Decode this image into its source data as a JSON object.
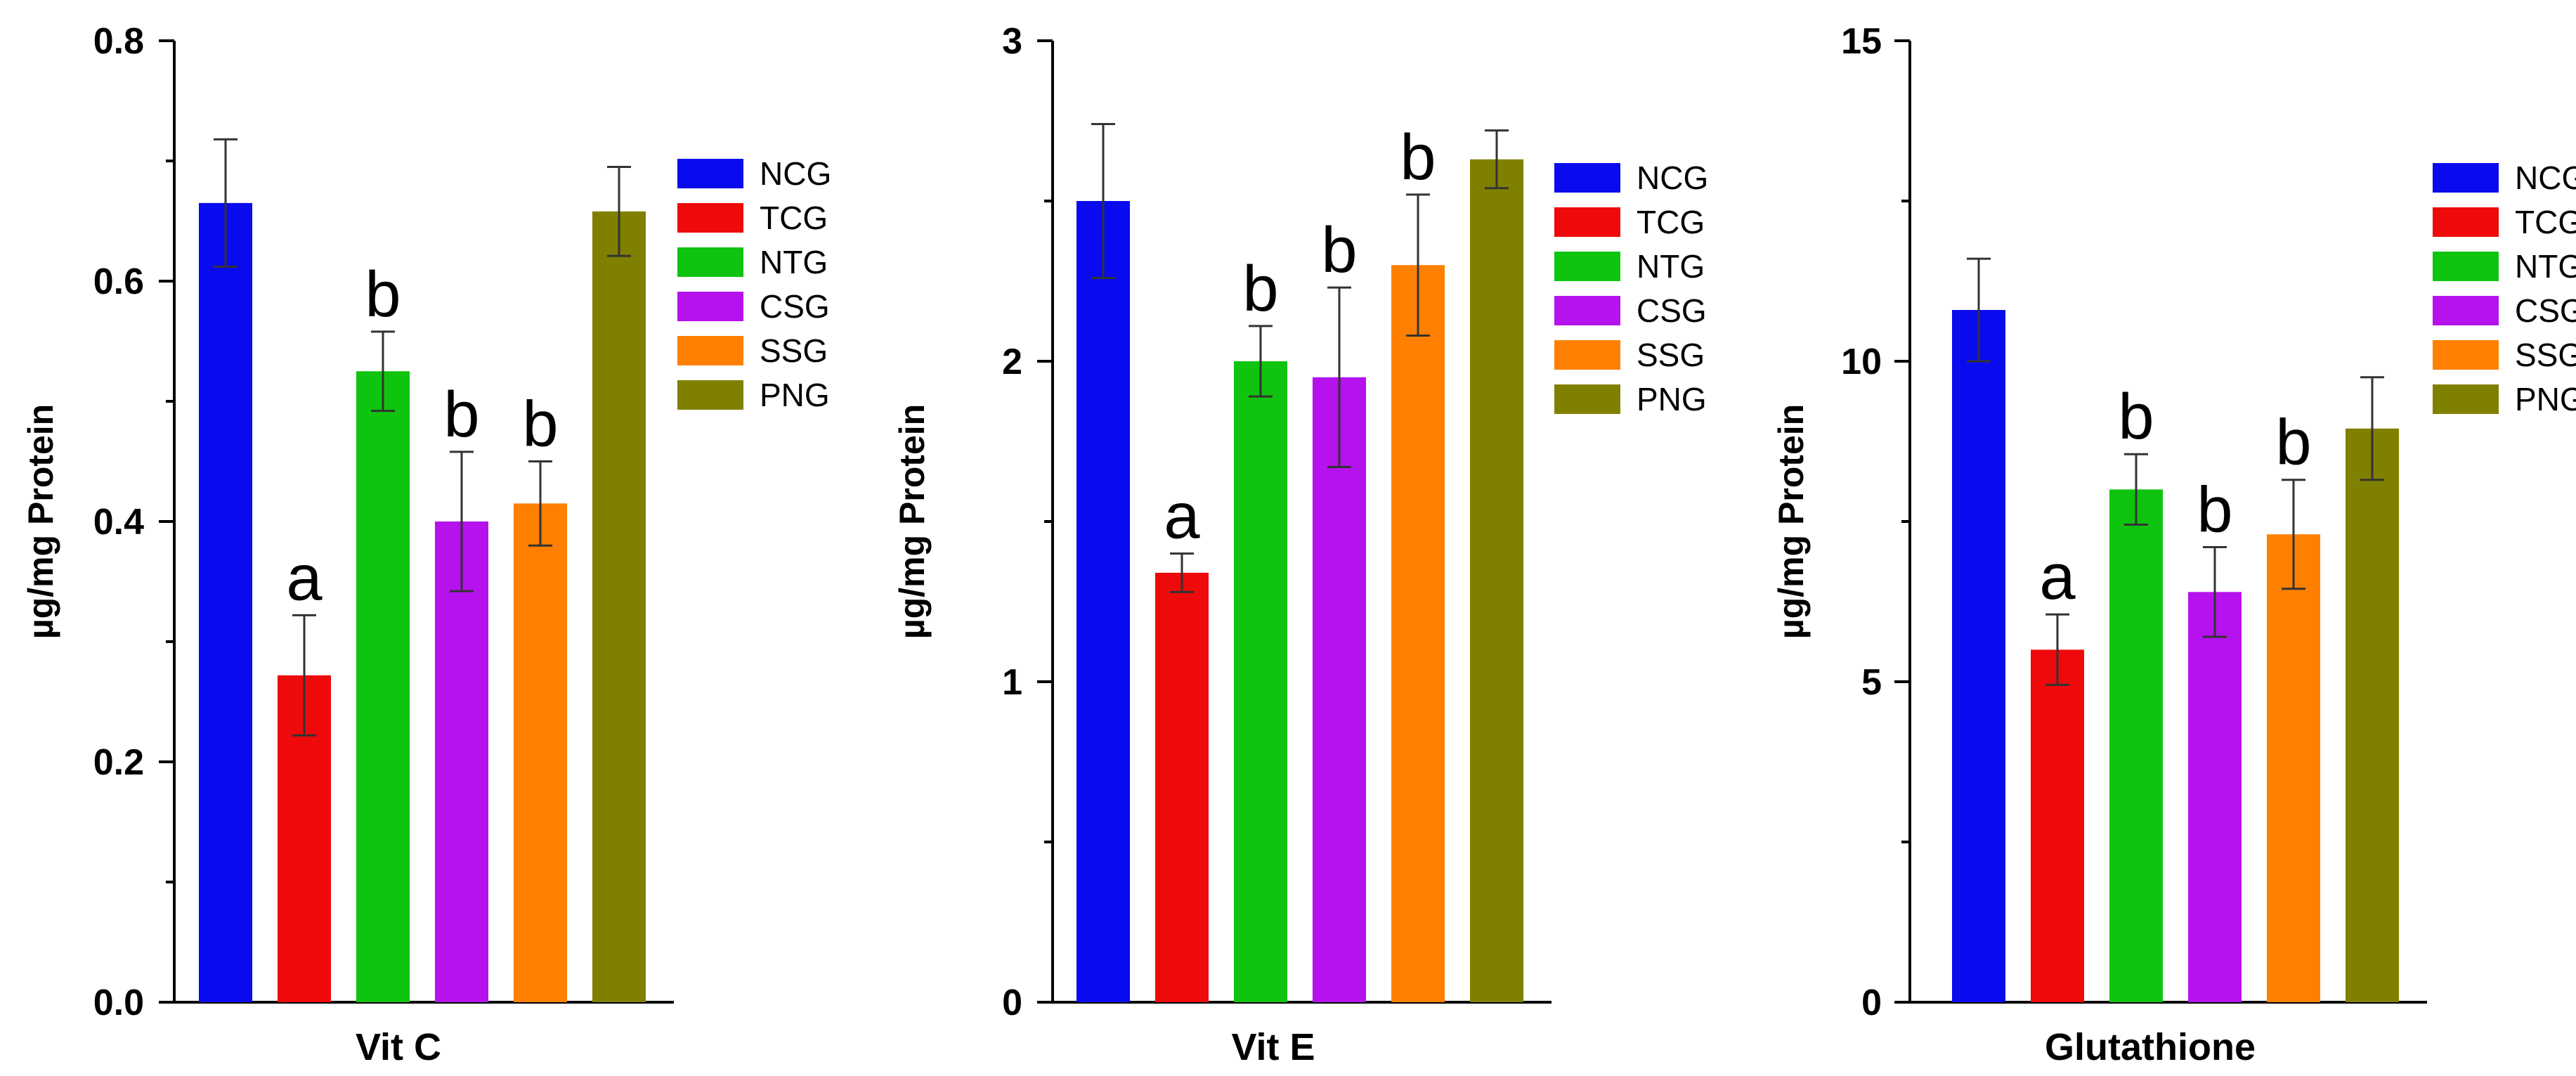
{
  "chart_data": [
    {
      "type": "bar",
      "title": "",
      "xlabel": "Vit C",
      "ylabel": "µg/mg Protein",
      "ylim": [
        0,
        0.8
      ],
      "yticks": [
        0.0,
        0.2,
        0.4,
        0.6,
        0.8
      ],
      "ytick_labels": [
        "0.0",
        "0.2",
        "0.4",
        "0.6",
        "0.8"
      ],
      "categories": [
        "NCG",
        "TCG",
        "NTG",
        "CSG",
        "SSG",
        "PNG"
      ],
      "values": [
        0.665,
        0.272,
        0.525,
        0.4,
        0.415,
        0.658
      ],
      "errors": [
        0.053,
        0.05,
        0.033,
        0.058,
        0.035,
        0.037
      ],
      "annotations": [
        "",
        "a",
        "b",
        "b",
        "b",
        ""
      ],
      "legend_location": "top-right"
    },
    {
      "type": "bar",
      "title": "",
      "xlabel": "Vit E",
      "ylabel": "µg/mg Protein",
      "ylim": [
        0,
        3
      ],
      "yticks": [
        0,
        1,
        2,
        3
      ],
      "ytick_labels": [
        "0",
        "1",
        "2",
        "3"
      ],
      "categories": [
        "NCG",
        "TCG",
        "NTG",
        "CSG",
        "SSG",
        "PNG"
      ],
      "values": [
        2.5,
        1.34,
        2.0,
        1.95,
        2.3,
        2.63
      ],
      "errors": [
        0.24,
        0.06,
        0.11,
        0.28,
        0.22,
        0.09
      ],
      "annotations": [
        "",
        "a",
        "b",
        "b",
        "b",
        ""
      ],
      "legend_location": "top-right"
    },
    {
      "type": "bar",
      "title": "",
      "xlabel": "Glutathione",
      "ylabel": "µg/mg Protein",
      "ylim": [
        0,
        15
      ],
      "yticks": [
        0,
        5,
        10,
        15
      ],
      "ytick_labels": [
        "0",
        "5",
        "10",
        "15"
      ],
      "categories": [
        "NCG",
        "TCG",
        "NTG",
        "CSG",
        "SSG",
        "PNG"
      ],
      "values": [
        10.8,
        5.5,
        8.0,
        6.4,
        7.3,
        8.95
      ],
      "errors": [
        0.8,
        0.55,
        0.55,
        0.7,
        0.85,
        0.8
      ],
      "annotations": [
        "",
        "a",
        "b",
        "b",
        "b",
        ""
      ],
      "legend_location": "top-right"
    }
  ],
  "legend": [
    "NCG",
    "TCG",
    "NTG",
    "CSG",
    "SSG",
    "PNG"
  ],
  "colors": {
    "NCG": "#0a0aee",
    "TCG": "#ee0a0a",
    "NTG": "#0ec40e",
    "CSG": "#b512ee",
    "SSG": "#ff8000",
    "PNG": "#808000",
    "axis": "#000000",
    "error_bar": "#333333"
  }
}
